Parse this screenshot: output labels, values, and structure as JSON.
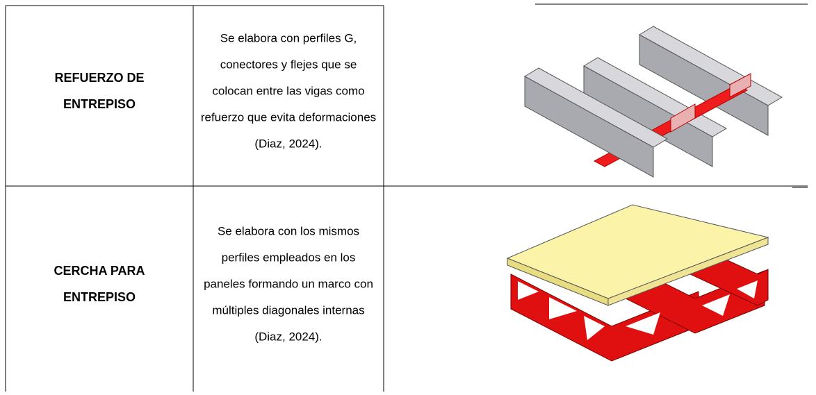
{
  "table": {
    "rows": [
      {
        "name": [
          "REFUERZO DE",
          "ENTREPISO"
        ],
        "description": [
          "Se elabora con perfiles G,",
          "conectores y flejes que se",
          "colocan entre las vigas como",
          "refuerzo que evita deformaciones",
          "(Diaz, 2024)."
        ]
      },
      {
        "name": [
          "CERCHA PARA",
          "ENTREPISO"
        ],
        "description": [
          "Se elabora con los mismos",
          "perfiles empleados en los",
          "paneles formando un marco con",
          "múltiples diagonales internas",
          "(Diaz, 2024)."
        ]
      }
    ]
  }
}
